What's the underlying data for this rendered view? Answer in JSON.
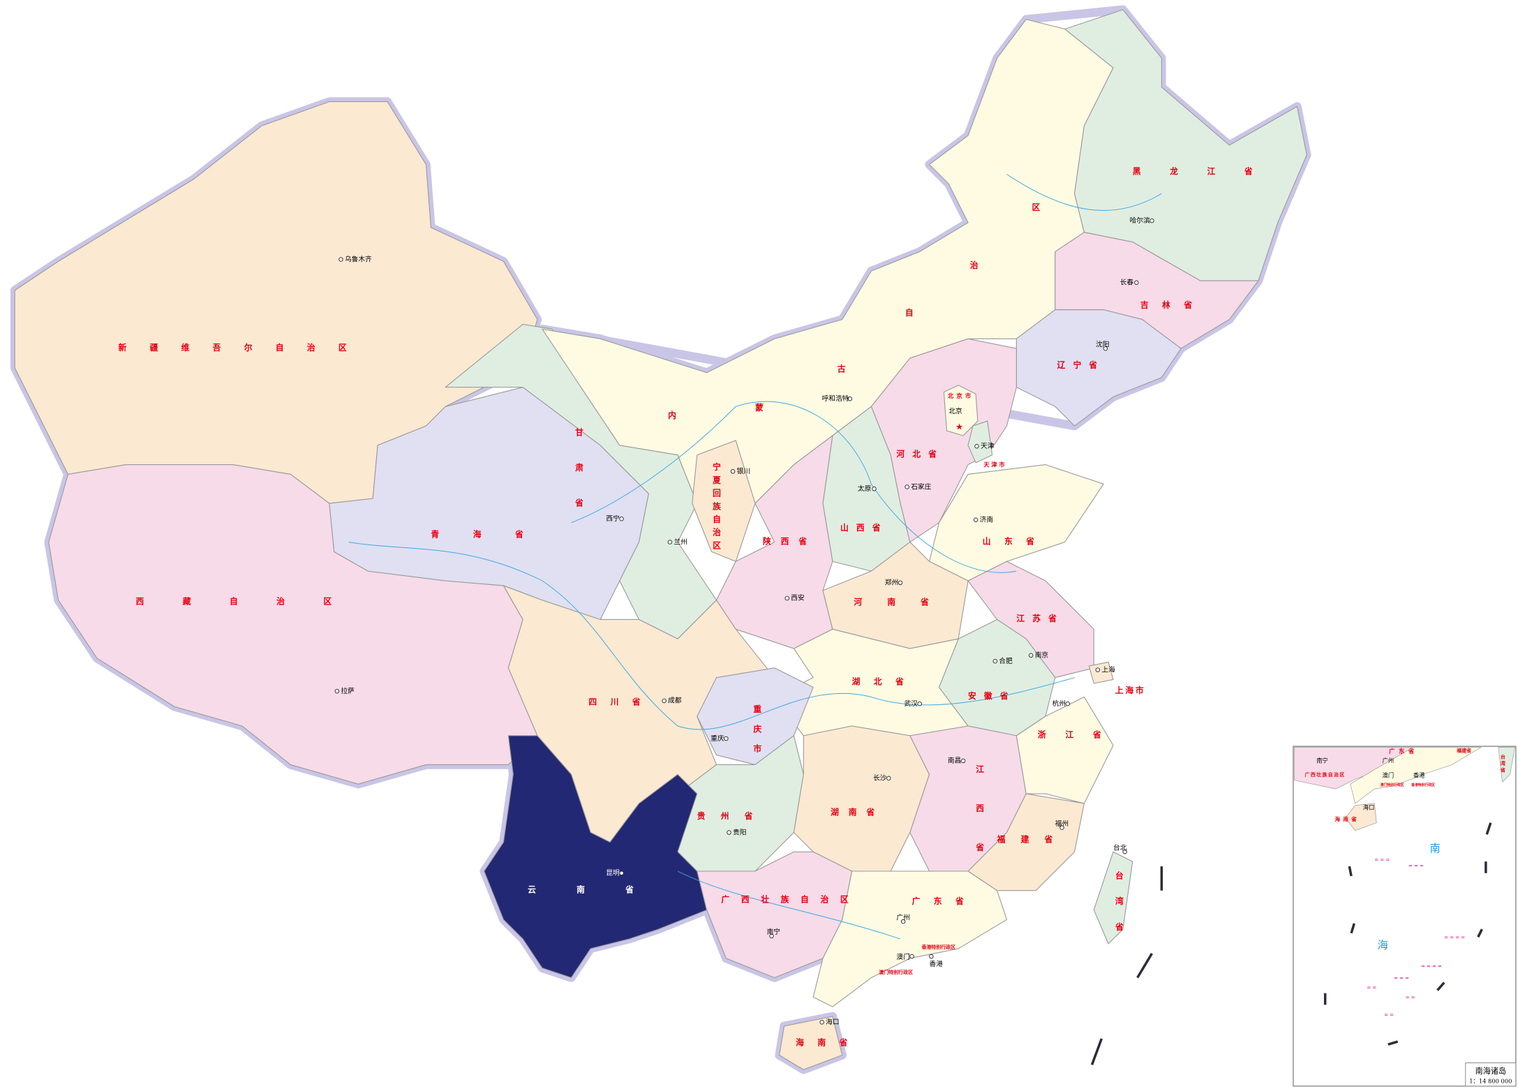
{
  "map": {
    "highlighted_province": "云南省",
    "colors": {
      "highlight": "#232874",
      "orange": "#fbe9d2",
      "pink": "#f7dbe8",
      "lavender": "#e0e0f2",
      "green": "#e0eee2",
      "cream": "#fffbe3",
      "border_halo": "#c9c5e6",
      "label": "#e60012",
      "river": "#3fa9e0",
      "islands": "#e4007f"
    },
    "provinces": {
      "xinjiang": "新疆维吾尔自治区",
      "xizang": "西藏自治区",
      "qinghai": "青海省",
      "gansu": "甘肃省",
      "neimenggu": [
        "内",
        "蒙",
        "古",
        "自",
        "治",
        "区"
      ],
      "heilongjiang": "黑龙江省",
      "jilin": "吉林省",
      "liaoning": "辽宁省",
      "beijing": "北京市",
      "tianjin": "天津市",
      "hebei": "河北省",
      "shanxi": "山西省",
      "shaanxi": "陕西省",
      "ningxia": "宁夏回族自治区",
      "shandong": "山东省",
      "henan": "河南省",
      "jiangsu": "江苏省",
      "anhui": "安徽省",
      "shanghai": "上海市",
      "hubei": "湖北省",
      "sichuan": "四川省",
      "chongqing": "重庆市",
      "guizhou": "贵州省",
      "yunnan": "云南省",
      "hunan": "湖南省",
      "jiangxi": "江西省",
      "zhejiang": "浙江省",
      "fujian": "福建省",
      "guangxi": "广西壮族自治区",
      "guangdong": "广东省",
      "hainan": "海南省",
      "taiwan": "台湾省",
      "hongkong": "香港特别行政区",
      "macau": "澳门特别行政区"
    },
    "cities": {
      "urumqi": "乌鲁木齐",
      "lhasa": "拉萨",
      "xining": "西宁",
      "lanzhou": "兰州",
      "yinchuan": "银川",
      "hohhot": "呼和浩特",
      "harbin": "哈尔滨",
      "changchun": "长春",
      "shenyang": "沈阳",
      "beijing": "北京",
      "tianjin": "天津",
      "shijiazhuang": "石家庄",
      "taiyuan": "太原",
      "jinan": "济南",
      "zhengzhou": "郑州",
      "xian": "西安",
      "nanjing": "南京",
      "hefei": "合肥",
      "shanghai": "上海",
      "hangzhou": "杭州",
      "wuhan": "武汉",
      "chengdu": "成都",
      "chongqing": "重庆",
      "guiyang": "贵阳",
      "kunming": "昆明",
      "changsha": "长沙",
      "nanchang": "南昌",
      "fuzhou": "福州",
      "taipei": "台北",
      "nanning": "南宁",
      "guangzhou": "广州",
      "macau": "澳门",
      "hongkong": "香港",
      "haikou": "海口"
    }
  },
  "inset": {
    "title": "南海诸岛",
    "scale": "1：14 800 000",
    "sea_char_1": "南",
    "sea_char_2": "海",
    "provinces": {
      "guangxi": "广西壮族自治区",
      "guangdong": "广东省",
      "fujian": "福建省",
      "taiwan": "台湾省",
      "hainan": "海南省",
      "macau": "澳门特别行政区",
      "hongkong": "香港特别行政区"
    },
    "cities": {
      "nanning": "南宁",
      "guangzhou": "广州",
      "macau": "澳门",
      "hongkong": "香港",
      "haikou": "海口"
    }
  }
}
